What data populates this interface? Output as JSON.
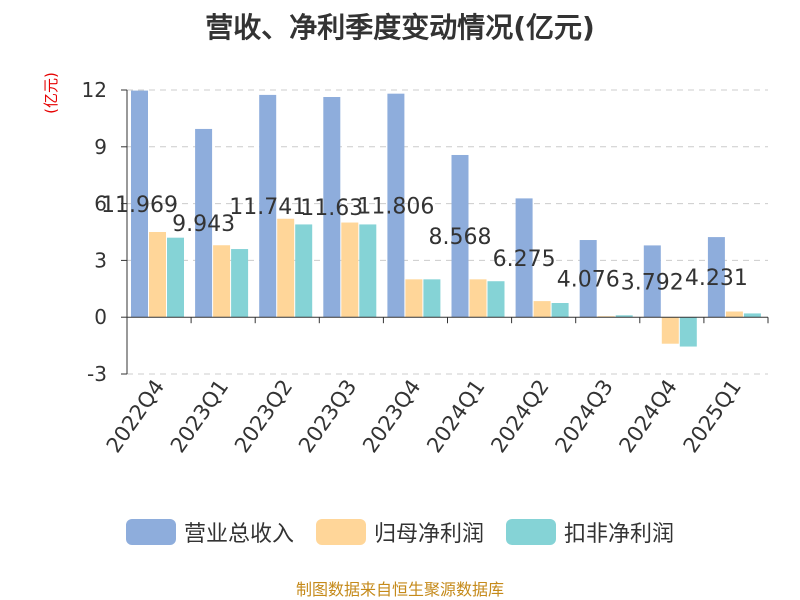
{
  "title": "营收、净利季度变动情况(亿元)",
  "ylabel": "(亿元)",
  "source": "制图数据来自恒生聚源数据库",
  "chart_data": {
    "type": "bar",
    "categories": [
      "2022Q4",
      "2023Q1",
      "2023Q2",
      "2023Q3",
      "2023Q4",
      "2024Q1",
      "2024Q2",
      "2024Q3",
      "2024Q4",
      "2025Q1"
    ],
    "ylim": [
      -3,
      12
    ],
    "yticks": [
      -3,
      0,
      3,
      6,
      9,
      12
    ],
    "grid": true,
    "legend_position": "bottom",
    "series": [
      {
        "name": "营业总收入",
        "color": "#8eaddc",
        "values": [
          11.969,
          9.943,
          11.741,
          11.63,
          11.806,
          8.568,
          6.275,
          4.076,
          3.792,
          4.231
        ],
        "labels": [
          "11.969",
          "9.943",
          "11.741",
          "11.63",
          "11.806",
          "8.568",
          "6.275",
          "4.076",
          "3.792",
          "4.231"
        ]
      },
      {
        "name": "归母净利润",
        "color": "#ffd699",
        "values": [
          4.5,
          3.8,
          5.2,
          5.0,
          2.0,
          2.0,
          0.85,
          0.05,
          -1.4,
          0.3
        ]
      },
      {
        "name": "扣非净利润",
        "color": "#85d3d6",
        "values": [
          4.2,
          3.6,
          4.9,
          4.9,
          2.0,
          1.9,
          0.75,
          0.1,
          -1.55,
          0.2
        ]
      }
    ]
  }
}
